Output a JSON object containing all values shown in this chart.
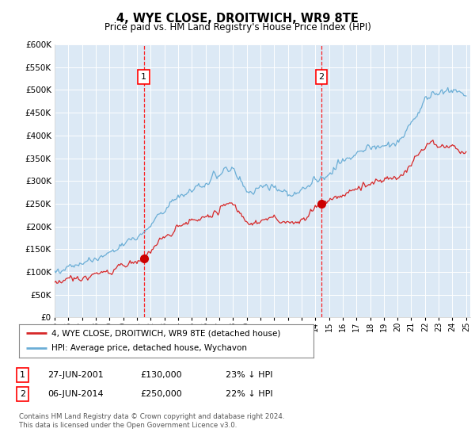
{
  "title": "4, WYE CLOSE, DROITWICH, WR9 8TE",
  "subtitle": "Price paid vs. HM Land Registry's House Price Index (HPI)",
  "footer": "Contains HM Land Registry data © Crown copyright and database right 2024.\nThis data is licensed under the Open Government Licence v3.0.",
  "legend_line1": "4, WYE CLOSE, DROITWICH, WR9 8TE (detached house)",
  "legend_line2": "HPI: Average price, detached house, Wychavon",
  "sale1_label": "1",
  "sale1_date": "27-JUN-2001",
  "sale1_price": "£130,000",
  "sale1_hpi": "23% ↓ HPI",
  "sale2_label": "2",
  "sale2_date": "06-JUN-2014",
  "sale2_price": "£250,000",
  "sale2_hpi": "22% ↓ HPI",
  "sale1_x": 2001.5,
  "sale1_y": 130000,
  "sale2_x": 2014.45,
  "sale2_y": 250000,
  "hpi_color": "#6baed6",
  "price_color": "#d62728",
  "marker_color": "#cc0000",
  "background_color": "#dce9f5",
  "ylim": [
    0,
    600000
  ],
  "xlim_start": 1995.0,
  "xlim_end": 2025.3,
  "yticks": [
    0,
    50000,
    100000,
    150000,
    200000,
    250000,
    300000,
    350000,
    400000,
    450000,
    500000,
    550000,
    600000
  ],
  "xticks": [
    1995,
    1996,
    1997,
    1998,
    1999,
    2000,
    2001,
    2002,
    2003,
    2004,
    2005,
    2006,
    2007,
    2008,
    2009,
    2010,
    2011,
    2012,
    2013,
    2014,
    2015,
    2016,
    2017,
    2018,
    2019,
    2020,
    2021,
    2022,
    2023,
    2024,
    2025
  ],
  "xtick_labels": [
    "95",
    "96",
    "97",
    "98",
    "99",
    "00",
    "01",
    "02",
    "03",
    "04",
    "05",
    "06",
    "07",
    "08",
    "09",
    "10",
    "11",
    "12",
    "13",
    "14",
    "15",
    "16",
    "17",
    "18",
    "19",
    "20",
    "21",
    "22",
    "23",
    "24",
    "25"
  ]
}
